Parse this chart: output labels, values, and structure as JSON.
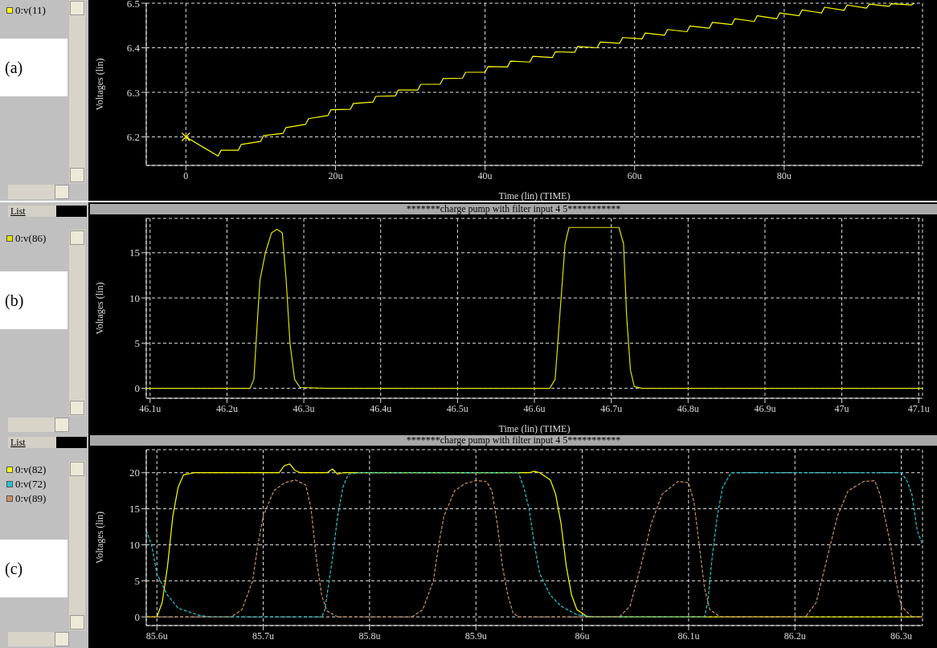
{
  "chart_data": [
    {
      "type": "line",
      "ylabel": "Voltages (lin)",
      "xlabel": "Time (lin) (TIME)",
      "annotations": [
        "(a)"
      ],
      "legend": "left",
      "grid": true,
      "xlim": [
        -5.3,
        98.5
      ],
      "xticks": [
        {
          "value": 0,
          "label": "0"
        },
        {
          "value": 20,
          "label": "20u"
        },
        {
          "value": 40,
          "label": "40u"
        },
        {
          "value": 60,
          "label": "60u"
        },
        {
          "value": 80,
          "label": "80u"
        }
      ],
      "ylim": [
        6.136,
        6.5
      ],
      "yticks": [
        6.2,
        6.3,
        6.4,
        6.5
      ],
      "series": [
        {
          "name": "0:v(11)",
          "color": "#ffff00",
          "x": [
            0,
            4.3,
            4.7,
            7,
            7.4,
            10,
            10.4,
            13,
            13.4,
            16,
            16.4,
            19,
            19.4,
            22,
            22.4,
            25,
            25.4,
            28,
            28.4,
            31,
            31.4,
            34,
            34.4,
            37,
            37.4,
            40,
            40.4,
            43,
            43.4,
            46,
            46.4,
            49,
            49.4,
            52,
            52.4,
            55,
            55.4,
            58,
            58.4,
            61,
            61.4,
            64,
            64.4,
            67,
            67.4,
            70,
            70.4,
            73,
            73.4,
            76,
            76.4,
            79,
            79.4,
            82,
            82.4,
            85,
            85.4,
            88,
            88.4,
            91,
            91.4,
            94,
            94.4,
            97,
            97.4
          ],
          "values": [
            6.2,
            6.157,
            6.17,
            6.17,
            6.183,
            6.19,
            6.203,
            6.208,
            6.221,
            6.228,
            6.241,
            6.248,
            6.261,
            6.262,
            6.275,
            6.278,
            6.291,
            6.292,
            6.305,
            6.305,
            6.318,
            6.318,
            6.331,
            6.332,
            6.345,
            6.345,
            6.358,
            6.357,
            6.37,
            6.368,
            6.381,
            6.378,
            6.391,
            6.39,
            6.403,
            6.4,
            6.413,
            6.41,
            6.423,
            6.42,
            6.433,
            6.428,
            6.441,
            6.436,
            6.449,
            6.444,
            6.457,
            6.452,
            6.465,
            6.459,
            6.472,
            6.465,
            6.478,
            6.472,
            6.485,
            6.478,
            6.491,
            6.484,
            6.496,
            6.489,
            6.498,
            6.493,
            6.499,
            6.496,
            6.5
          ]
        },
        {
          "type": "scatter",
          "marker": "cross",
          "color": "#ffff00",
          "x": [
            0
          ],
          "values": [
            6.2
          ]
        }
      ]
    },
    {
      "type": "line",
      "title": "*******charge pump with filter input 4 5***********",
      "ylabel": "Voltages (lin)",
      "xlabel": "Time (lin) (TIME)",
      "annotations": [
        "(b)",
        "List"
      ],
      "legend": "left",
      "grid": true,
      "xlim": [
        46.095,
        47.105
      ],
      "xticks": [
        {
          "value": 46.1,
          "label": "46.1u"
        },
        {
          "value": 46.2,
          "label": "46.2u"
        },
        {
          "value": 46.3,
          "label": "46.3u"
        },
        {
          "value": 46.4,
          "label": "46.4u"
        },
        {
          "value": 46.5,
          "label": "46.5u"
        },
        {
          "value": 46.6,
          "label": "46.6u"
        },
        {
          "value": 46.7,
          "label": "46.7u"
        },
        {
          "value": 46.8,
          "label": "46.8u"
        },
        {
          "value": 46.9,
          "label": "46.9u"
        },
        {
          "value": 47,
          "label": "47u"
        },
        {
          "value": 47.1,
          "label": "47.1u"
        }
      ],
      "ylim": [
        -1.1,
        18.8
      ],
      "yticks": [
        0,
        5,
        10,
        15
      ],
      "series": [
        {
          "name": "0:v(86)",
          "color": "#e0e000",
          "x": [
            46.095,
            46.23,
            46.235,
            46.24,
            46.243,
            46.25,
            46.258,
            46.265,
            46.272,
            46.277,
            46.282,
            46.288,
            46.295,
            46.33,
            46.62,
            46.627,
            46.633,
            46.64,
            46.645,
            46.71,
            46.716,
            46.72,
            46.725,
            46.73,
            46.74,
            47.105
          ],
          "values": [
            0,
            0,
            1,
            8,
            12,
            15,
            17.2,
            17.6,
            17.2,
            12,
            5,
            1,
            0.1,
            0,
            0,
            1,
            8,
            16,
            17.8,
            17.8,
            16,
            8,
            2,
            0.2,
            0,
            0
          ]
        }
      ]
    },
    {
      "type": "line",
      "title": "*******charge pump with filter input 4 5***********",
      "ylabel": "Voltages (lin)",
      "annotations": [
        "(c)",
        "List"
      ],
      "legend": "left",
      "grid": true,
      "xlim": [
        85.59,
        86.32
      ],
      "xticks": [
        {
          "value": 85.6,
          "label": "85.6u"
        },
        {
          "value": 85.7,
          "label": "85.7u"
        },
        {
          "value": 85.8,
          "label": "85.8u"
        },
        {
          "value": 85.9,
          "label": "85.9u"
        },
        {
          "value": 86,
          "label": "86u"
        },
        {
          "value": 86.1,
          "label": "86.1u"
        },
        {
          "value": 86.2,
          "label": "86.2u"
        },
        {
          "value": 86.3,
          "label": "86.3u"
        }
      ],
      "ylim": [
        -1.2,
        23.2
      ],
      "yticks": [
        0,
        5,
        10,
        15,
        20
      ],
      "series": [
        {
          "name": "0:v(82)",
          "color": "#ffff00",
          "line_style": "solid",
          "x": [
            85.59,
            85.6,
            85.605,
            85.61,
            85.615,
            85.62,
            85.625,
            85.635,
            85.715,
            85.72,
            85.725,
            85.73,
            85.735,
            85.76,
            85.765,
            85.77,
            85.775,
            85.95,
            85.955,
            85.96,
            85.97,
            85.975,
            85.98,
            85.985,
            85.99,
            85.995,
            86.005,
            86.32
          ],
          "values": [
            0,
            0,
            2,
            7,
            14,
            18,
            19.7,
            20,
            20,
            21,
            21.2,
            20.3,
            20,
            20,
            20.5,
            19.8,
            20,
            20,
            20.2,
            20,
            19,
            17,
            13,
            7,
            3,
            1,
            0,
            0
          ]
        },
        {
          "name": "0:v(72)",
          "color": "#20c8d0",
          "line_style": "dashed",
          "x": [
            85.59,
            85.595,
            85.6,
            85.61,
            85.62,
            85.64,
            85.65,
            85.755,
            85.758,
            85.765,
            85.77,
            85.775,
            85.78,
            85.79,
            85.94,
            85.945,
            85.95,
            85.955,
            85.96,
            85.97,
            85.98,
            85.995,
            86.01,
            86.115,
            86.118,
            86.122,
            86.127,
            86.132,
            86.14,
            86.3,
            86.305,
            86.31,
            86.315,
            86.32
          ],
          "values": [
            12,
            10,
            6,
            3,
            1.2,
            0.2,
            0,
            0,
            1,
            8,
            14,
            18,
            19.8,
            20,
            20,
            18,
            15,
            10,
            6,
            3,
            1.5,
            0.3,
            0,
            0,
            2,
            8,
            14,
            18,
            20,
            20,
            19,
            17,
            12,
            10
          ]
        },
        {
          "name": "0:v(89)",
          "color": "#c89060",
          "line_style": "dashed",
          "x": [
            85.59,
            85.67,
            85.68,
            85.69,
            85.695,
            85.7,
            85.71,
            85.72,
            85.73,
            85.74,
            85.745,
            85.75,
            85.755,
            85.76,
            85.77,
            85.84,
            85.85,
            85.86,
            85.865,
            85.87,
            85.88,
            85.89,
            85.9,
            85.91,
            85.915,
            85.92,
            85.925,
            85.93,
            85.935,
            85.94,
            86.035,
            86.045,
            86.055,
            86.065,
            86.075,
            86.09,
            86.1,
            86.105,
            86.11,
            86.115,
            86.12,
            86.13,
            86.21,
            86.22,
            86.23,
            86.24,
            86.25,
            86.265,
            86.275,
            86.28,
            86.29,
            86.295,
            86.3,
            86.31,
            86.32
          ],
          "values": [
            0,
            0,
            1,
            5,
            10,
            14,
            17.5,
            18.6,
            19,
            18.3,
            15,
            8,
            3,
            0.8,
            0,
            0,
            1,
            5,
            10,
            14,
            17.5,
            18.5,
            18.9,
            18.8,
            17.5,
            13,
            7,
            3,
            0.5,
            0,
            0,
            1.5,
            7,
            13,
            17,
            18.8,
            18.6,
            16,
            10,
            4,
            1,
            0,
            0,
            2,
            8,
            14,
            17.5,
            18.8,
            18.9,
            17,
            10,
            5,
            1.5,
            0,
            0
          ]
        }
      ]
    }
  ]
}
